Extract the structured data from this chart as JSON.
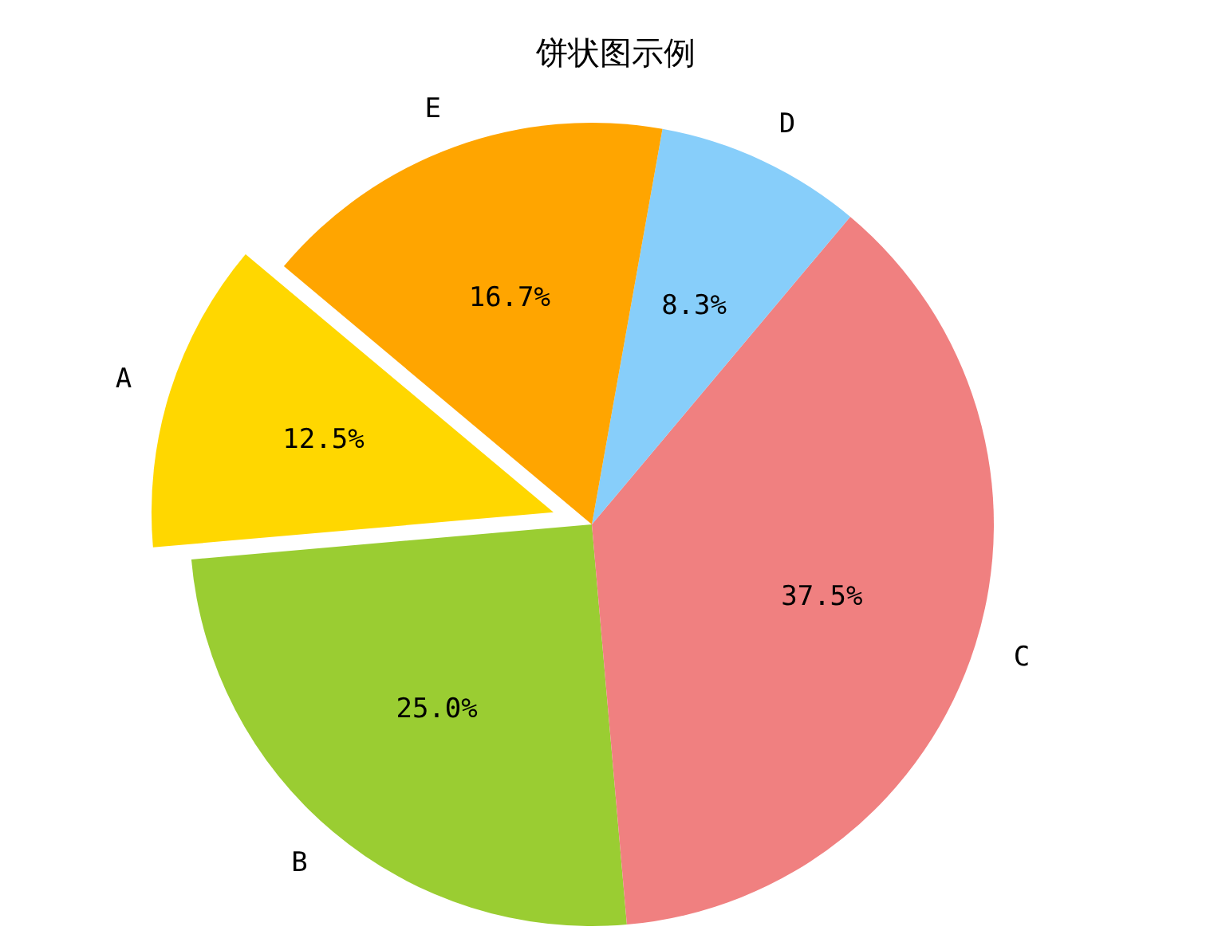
{
  "chart_data": {
    "type": "pie",
    "title": "饼状图示例",
    "categories": [
      "A",
      "B",
      "C",
      "D",
      "E"
    ],
    "values": [
      12.5,
      25.0,
      37.5,
      8.3,
      16.7
    ],
    "value_labels": [
      "12.5%",
      "25.0%",
      "37.5%",
      "8.3%",
      "16.7%"
    ],
    "colors": [
      "#ffd700",
      "#9acd32",
      "#f08080",
      "#87cefa",
      "#ffa500"
    ]
  }
}
